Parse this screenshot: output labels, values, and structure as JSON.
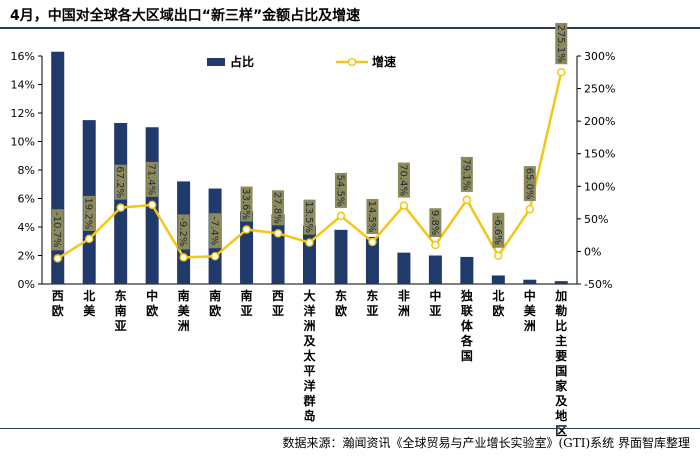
{
  "title": "4月，中国对全球各大区域出口“新三样”金额占比及增速",
  "source": "数据来源：瀚闻资讯《全球贸易与产业增长实验室》(GTI)系统  界面智库整理",
  "colors": {
    "bar": "#1f3a6b",
    "line": "#f5c518",
    "label_box": "#8c8a5a"
  },
  "chart_data": {
    "type": "bar+line",
    "categories": [
      "西欧",
      "北美",
      "东南亚",
      "中欧",
      "南美洲",
      "南欧",
      "南亚",
      "西亚",
      "大洋洲及太平洋群岛",
      "东欧",
      "东亚",
      "非洲",
      "中亚",
      "独联体各国",
      "北欧",
      "中美洲",
      "加勒比主要国家及地区"
    ],
    "series": [
      {
        "name": "占比",
        "axis": "left",
        "type": "bar",
        "values": [
          16.3,
          11.5,
          11.3,
          11.0,
          7.2,
          6.7,
          5.1,
          4.9,
          4.1,
          3.8,
          3.3,
          2.2,
          2.0,
          1.9,
          0.6,
          0.3,
          0.2
        ]
      },
      {
        "name": "增速",
        "axis": "right",
        "type": "line",
        "values": [
          -10.7,
          19.2,
          67.2,
          71.4,
          -9.2,
          -7.4,
          33.6,
          27.8,
          13.5,
          54.5,
          14.5,
          70.4,
          9.8,
          79.1,
          -6.6,
          65.0,
          275.1
        ],
        "labels": [
          "-10.7%",
          "19.2%",
          "67.2%",
          "71.4%",
          "-9.2%",
          "-7.4%",
          "33.6%",
          "27.8%",
          "13.5%",
          "54.5%",
          "14.5%",
          "70.4%",
          "9.8%",
          "79.1%",
          "-6.6%",
          "65.0%",
          "275.1%"
        ]
      }
    ],
    "y_left": {
      "lim": [
        0,
        16
      ],
      "ticks": [
        "0%",
        "2%",
        "4%",
        "6%",
        "8%",
        "10%",
        "12%",
        "14%",
        "16%"
      ]
    },
    "y_right": {
      "lim": [
        -50,
        300
      ],
      "ticks": [
        "-50%",
        "0%",
        "50%",
        "100%",
        "150%",
        "200%",
        "250%",
        "300%"
      ]
    },
    "legend": [
      "占比",
      "增速"
    ]
  }
}
